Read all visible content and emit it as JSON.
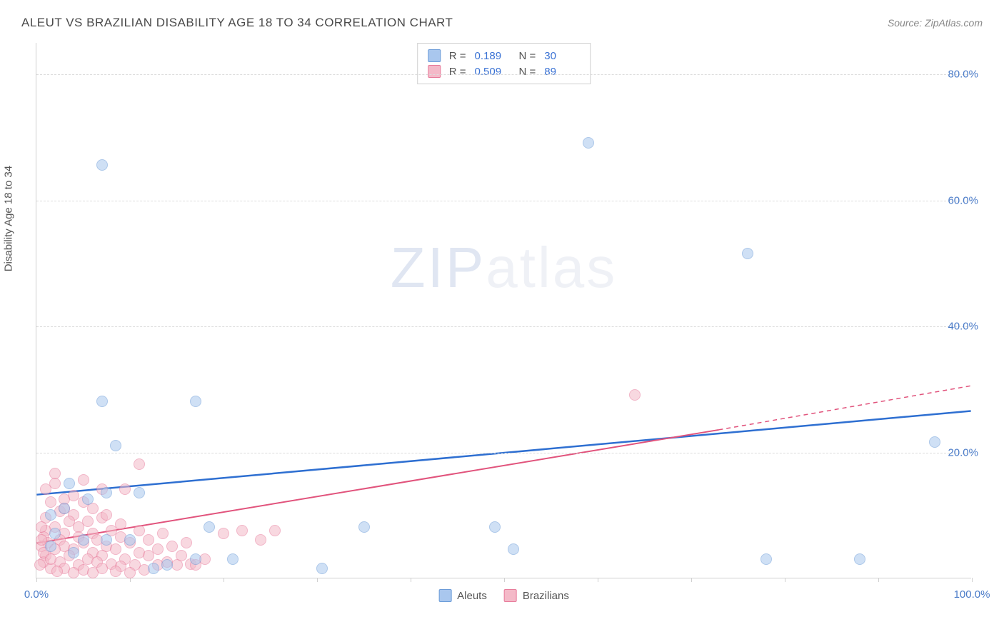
{
  "title": "ALEUT VS BRAZILIAN DISABILITY AGE 18 TO 34 CORRELATION CHART",
  "source": "Source: ZipAtlas.com",
  "y_axis_label": "Disability Age 18 to 34",
  "watermark_a": "ZIP",
  "watermark_b": "atlas",
  "chart": {
    "type": "scatter",
    "xlim": [
      0,
      100
    ],
    "ylim": [
      0,
      85
    ],
    "x_ticks": [
      0,
      10,
      20,
      30,
      40,
      50,
      60,
      70,
      80,
      90,
      100
    ],
    "x_tick_labels": {
      "0": "0.0%",
      "100": "100.0%"
    },
    "y_ticks": [
      20,
      40,
      60,
      80
    ],
    "y_tick_labels": {
      "20": "20.0%",
      "40": "40.0%",
      "60": "60.0%",
      "80": "80.0%"
    },
    "background_color": "#ffffff",
    "grid_color": "#dcdcdc",
    "axis_color": "#d0d0d0",
    "tick_label_color": "#4a7bc8",
    "marker_radius": 8,
    "marker_opacity": 0.55,
    "series": [
      {
        "name": "Aleuts",
        "fill": "#a9c7ee",
        "stroke": "#6a9bd8",
        "r_value": "0.189",
        "n_value": "30",
        "trend": {
          "x1": 0,
          "y1": 13.2,
          "x2": 100,
          "y2": 26.5,
          "color": "#2e6fd1",
          "width": 2.5,
          "dash": "none"
        },
        "points": [
          [
            7,
            65.5
          ],
          [
            59,
            69
          ],
          [
            7,
            28
          ],
          [
            17,
            28
          ],
          [
            76,
            51.5
          ],
          [
            8.5,
            21
          ],
          [
            96,
            21.5
          ],
          [
            7.5,
            13.5
          ],
          [
            5.5,
            12.5
          ],
          [
            11,
            13.5
          ],
          [
            3.5,
            15
          ],
          [
            3,
            11
          ],
          [
            1.5,
            10
          ],
          [
            2,
            7
          ],
          [
            5,
            6
          ],
          [
            7.5,
            6
          ],
          [
            10,
            6
          ],
          [
            4,
            4
          ],
          [
            18.5,
            8
          ],
          [
            51,
            4.5
          ],
          [
            21,
            3
          ],
          [
            12.5,
            1.5
          ],
          [
            30.5,
            1.5
          ],
          [
            35,
            8
          ],
          [
            49,
            8
          ],
          [
            78,
            3
          ],
          [
            88,
            3
          ],
          [
            1.5,
            5
          ],
          [
            14,
            2
          ],
          [
            17,
            3
          ]
        ]
      },
      {
        "name": "Brazilians",
        "fill": "#f4b9c8",
        "stroke": "#e77a9a",
        "r_value": "0.509",
        "n_value": "89",
        "trend": {
          "x1": 0,
          "y1": 5.5,
          "x2": 73,
          "y2": 23.5,
          "color": "#e1537c",
          "width": 2,
          "dash": "none"
        },
        "trend_dash": {
          "x1": 73,
          "y1": 23.5,
          "x2": 100,
          "y2": 30.5,
          "color": "#e1537c",
          "width": 1.5,
          "dash": "6 5"
        },
        "points": [
          [
            64,
            29
          ],
          [
            11,
            18
          ],
          [
            7,
            14
          ],
          [
            5,
            15.5
          ],
          [
            2,
            15
          ],
          [
            4,
            13
          ],
          [
            3,
            12.5
          ],
          [
            1.5,
            12
          ],
          [
            9.5,
            14
          ],
          [
            6,
            11
          ],
          [
            4,
            10
          ],
          [
            2.5,
            10.5
          ],
          [
            1,
            9.5
          ],
          [
            3.5,
            9
          ],
          [
            5.5,
            9
          ],
          [
            7,
            9.5
          ],
          [
            2,
            8
          ],
          [
            4.5,
            8
          ],
          [
            1,
            7.5
          ],
          [
            3,
            7
          ],
          [
            6,
            7
          ],
          [
            8,
            7.5
          ],
          [
            0.8,
            6.5
          ],
          [
            2.5,
            6
          ],
          [
            4.5,
            6.5
          ],
          [
            6.5,
            6
          ],
          [
            9,
            6.5
          ],
          [
            1.2,
            5.5
          ],
          [
            3,
            5
          ],
          [
            5,
            5.5
          ],
          [
            7.5,
            5
          ],
          [
            10,
            5.5
          ],
          [
            0.5,
            5
          ],
          [
            2,
            4.5
          ],
          [
            4,
            4.5
          ],
          [
            6,
            4
          ],
          [
            8.5,
            4.5
          ],
          [
            11,
            4
          ],
          [
            13,
            4.5
          ],
          [
            1,
            3.5
          ],
          [
            3.5,
            3.5
          ],
          [
            5.5,
            3
          ],
          [
            7,
            3.5
          ],
          [
            9.5,
            3
          ],
          [
            12,
            3.5
          ],
          [
            0.8,
            2.5
          ],
          [
            2.5,
            2.5
          ],
          [
            4.5,
            2
          ],
          [
            6.5,
            2.5
          ],
          [
            8,
            2.2
          ],
          [
            10.5,
            2
          ],
          [
            14,
            2.5
          ],
          [
            1.5,
            1.5
          ],
          [
            3,
            1.5
          ],
          [
            5,
            1.2
          ],
          [
            7,
            1.5
          ],
          [
            9,
            1.8
          ],
          [
            11.5,
            1.2
          ],
          [
            15,
            2
          ],
          [
            16.5,
            2.2
          ],
          [
            18,
            3
          ],
          [
            20,
            7
          ],
          [
            22,
            7.5
          ],
          [
            24,
            6
          ],
          [
            25.5,
            7.5
          ],
          [
            15.5,
            3.5
          ],
          [
            17,
            2
          ],
          [
            13.5,
            7
          ],
          [
            13,
            2
          ],
          [
            12,
            6
          ],
          [
            14.5,
            5
          ],
          [
            16,
            5.5
          ],
          [
            11,
            7.5
          ],
          [
            9,
            8.5
          ],
          [
            7.5,
            10
          ],
          [
            5,
            12
          ],
          [
            3,
            11
          ],
          [
            2,
            16.5
          ],
          [
            1,
            14
          ],
          [
            0.5,
            8
          ],
          [
            0.5,
            6
          ],
          [
            0.8,
            4
          ],
          [
            1.5,
            3
          ],
          [
            0.4,
            2
          ],
          [
            2.2,
            1
          ],
          [
            4,
            0.8
          ],
          [
            6,
            0.8
          ],
          [
            8.5,
            1
          ],
          [
            10,
            0.8
          ]
        ]
      }
    ]
  },
  "legend": {
    "items": [
      {
        "label": "Aleuts",
        "fill": "#a9c7ee",
        "stroke": "#6a9bd8"
      },
      {
        "label": "Brazilians",
        "fill": "#f4b9c8",
        "stroke": "#e77a9a"
      }
    ]
  }
}
